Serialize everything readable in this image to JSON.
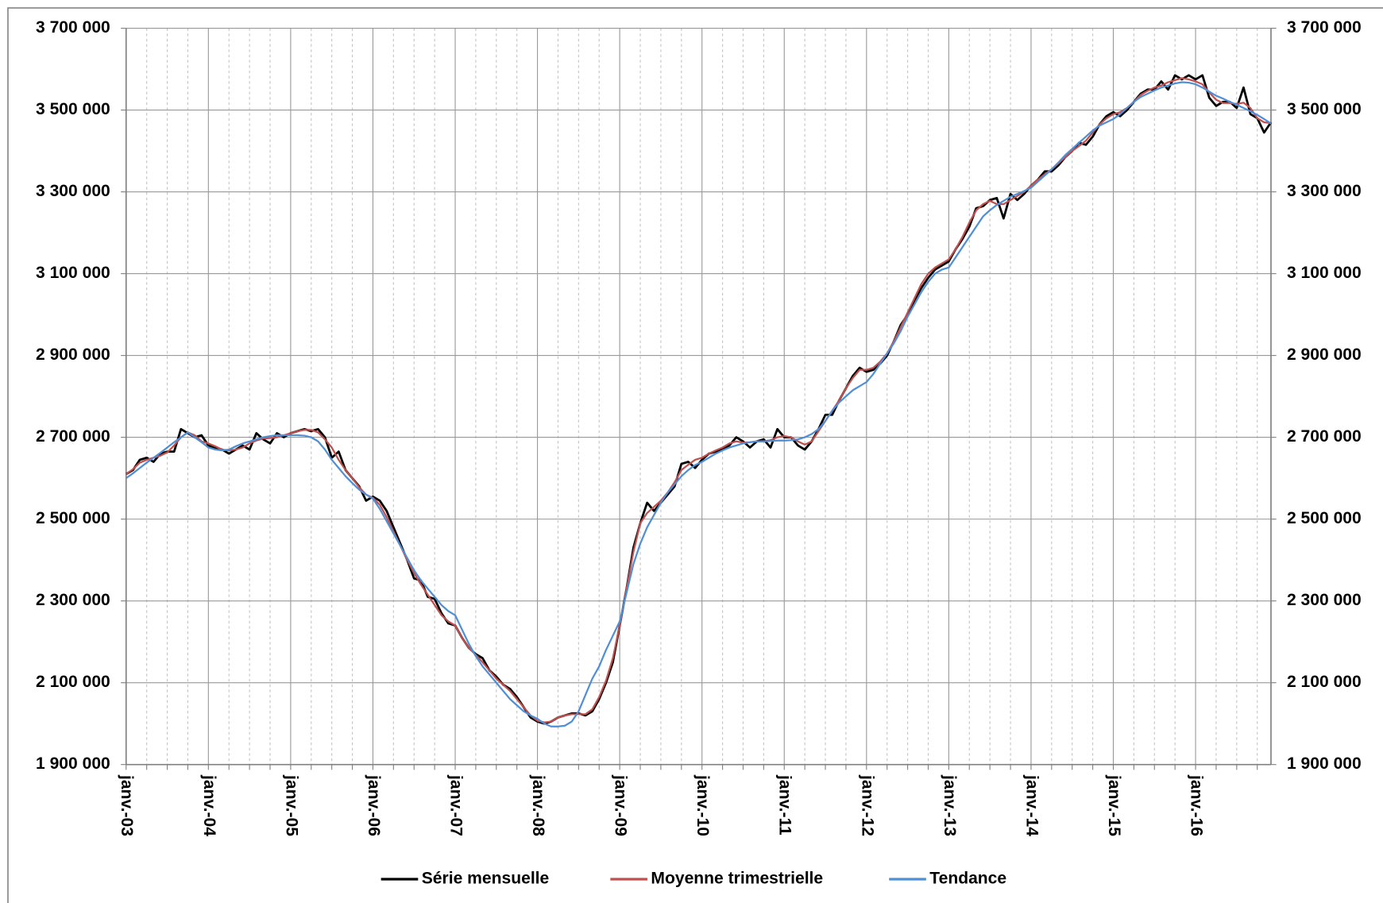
{
  "chart_data": {
    "type": "line",
    "categories": [
      "janv.-03",
      null,
      null,
      null,
      null,
      null,
      null,
      null,
      null,
      null,
      null,
      null,
      "janv.-04",
      null,
      null,
      null,
      null,
      null,
      null,
      null,
      null,
      null,
      null,
      null,
      "janv.-05",
      null,
      null,
      null,
      null,
      null,
      null,
      null,
      null,
      null,
      null,
      null,
      "janv.-06",
      null,
      null,
      null,
      null,
      null,
      null,
      null,
      null,
      null,
      null,
      null,
      "janv.-07",
      null,
      null,
      null,
      null,
      null,
      null,
      null,
      null,
      null,
      null,
      null,
      "janv.-08",
      null,
      null,
      null,
      null,
      null,
      null,
      null,
      null,
      null,
      null,
      null,
      "janv.-09",
      null,
      null,
      null,
      null,
      null,
      null,
      null,
      null,
      null,
      null,
      null,
      "janv.-10",
      null,
      null,
      null,
      null,
      null,
      null,
      null,
      null,
      null,
      null,
      null,
      "janv.-11",
      null,
      null,
      null,
      null,
      null,
      null,
      null,
      null,
      null,
      null,
      null,
      "janv.-12",
      null,
      null,
      null,
      null,
      null,
      null,
      null,
      null,
      null,
      null,
      null,
      "janv.-13",
      null,
      null,
      null,
      null,
      null,
      null,
      null,
      null,
      null,
      null,
      null,
      "janv.-14",
      null,
      null,
      null,
      null,
      null,
      null,
      null,
      null,
      null,
      null,
      null,
      "janv.-15",
      null,
      null,
      null,
      null,
      null,
      null,
      null,
      null,
      null,
      null,
      null,
      "janv.-16",
      null,
      null,
      null,
      null,
      null,
      null,
      null,
      null,
      null,
      null,
      null
    ],
    "series": [
      {
        "name": "Série mensuelle",
        "color": "#000000",
        "values": [
          2610000,
          2620000,
          2645000,
          2650000,
          2640000,
          2660000,
          2665000,
          2665000,
          2720000,
          2710000,
          2700000,
          2705000,
          2680000,
          2675000,
          2670000,
          2660000,
          2670000,
          2680000,
          2670000,
          2710000,
          2695000,
          2685000,
          2710000,
          2700000,
          2710000,
          2715000,
          2720000,
          2715000,
          2720000,
          2700000,
          2650000,
          2665000,
          2620000,
          2600000,
          2580000,
          2545000,
          2555000,
          2545000,
          2520000,
          2480000,
          2440000,
          2400000,
          2355000,
          2350000,
          2310000,
          2305000,
          2270000,
          2245000,
          2240000,
          2210000,
          2185000,
          2170000,
          2160000,
          2130000,
          2115000,
          2095000,
          2085000,
          2065000,
          2040000,
          2015000,
          2005000,
          2000000,
          2005000,
          2015000,
          2020000,
          2025000,
          2025000,
          2020000,
          2030000,
          2060000,
          2100000,
          2150000,
          2240000,
          2330000,
          2430000,
          2490000,
          2540000,
          2520000,
          2540000,
          2560000,
          2580000,
          2635000,
          2640000,
          2625000,
          2645000,
          2660000,
          2665000,
          2670000,
          2680000,
          2700000,
          2690000,
          2675000,
          2690000,
          2695000,
          2675000,
          2720000,
          2700000,
          2700000,
          2680000,
          2670000,
          2690000,
          2720000,
          2755000,
          2755000,
          2790000,
          2820000,
          2850000,
          2870000,
          2860000,
          2865000,
          2880000,
          2900000,
          2935000,
          2975000,
          3000000,
          3035000,
          3065000,
          3090000,
          3110000,
          3120000,
          3130000,
          3160000,
          3185000,
          3215000,
          3260000,
          3265000,
          3280000,
          3285000,
          3235000,
          3295000,
          3280000,
          3295000,
          3315000,
          3330000,
          3350000,
          3350000,
          3365000,
          3385000,
          3400000,
          3420000,
          3415000,
          3435000,
          3465000,
          3485000,
          3495000,
          3485000,
          3500000,
          3520000,
          3540000,
          3550000,
          3550000,
          3570000,
          3550000,
          3585000,
          3575000,
          3585000,
          3575000,
          3585000,
          3530000,
          3510000,
          3520000,
          3520000,
          3505000,
          3555000,
          3490000,
          3480000,
          3445000,
          3470000
        ]
      },
      {
        "name": "Moyenne trimestrielle",
        "color": "#c0504d",
        "values": [
          2610000,
          2622000,
          2638000,
          2645000,
          2650000,
          2655000,
          2663000,
          2680000,
          2700000,
          2712000,
          2705000,
          2690000,
          2685000,
          2678000,
          2670000,
          2668000,
          2670000,
          2675000,
          2685000,
          2692000,
          2697000,
          2698000,
          2700000,
          2705000,
          2710000,
          2715000,
          2718000,
          2718000,
          2712000,
          2695000,
          2675000,
          2645000,
          2620000,
          2600000,
          2578000,
          2560000,
          2552000,
          2535000,
          2505000,
          2470000,
          2435000,
          2400000,
          2368000,
          2340000,
          2315000,
          2290000,
          2265000,
          2250000,
          2240000,
          2210000,
          2185000,
          2168000,
          2150000,
          2130000,
          2110000,
          2095000,
          2080000,
          2060000,
          2040000,
          2020000,
          2007000,
          2003000,
          2005000,
          2015000,
          2020000,
          2023000,
          2023000,
          2023000,
          2035000,
          2065000,
          2105000,
          2160000,
          2240000,
          2330000,
          2420000,
          2490000,
          2515000,
          2530000,
          2545000,
          2565000,
          2590000,
          2620000,
          2633000,
          2645000,
          2650000,
          2660000,
          2668000,
          2675000,
          2685000,
          2690000,
          2687000,
          2688000,
          2690000,
          2690000,
          2693000,
          2700000,
          2703000,
          2700000,
          2690000,
          2682000,
          2690000,
          2715000,
          2740000,
          2765000,
          2790000,
          2820000,
          2845000,
          2865000,
          2865000,
          2870000,
          2885000,
          2905000,
          2935000,
          2970000,
          3005000,
          3040000,
          3075000,
          3100000,
          3115000,
          3125000,
          3135000,
          3160000,
          3190000,
          3225000,
          3255000,
          3270000,
          3278000,
          3270000,
          3270000,
          3280000,
          3290000,
          3300000,
          3315000,
          3330000,
          3343000,
          3355000,
          3370000,
          3385000,
          3400000,
          3412000,
          3425000,
          3445000,
          3465000,
          3480000,
          3490000,
          3495000,
          3505000,
          3520000,
          3537000,
          3547000,
          3555000,
          3560000,
          3568000,
          3573000,
          3578000,
          3575000,
          3570000,
          3563000,
          3543000,
          3525000,
          3517000,
          3517000,
          3515000,
          3518000,
          3505000,
          3480000,
          3470000,
          3468000
        ]
      },
      {
        "name": "Tendance",
        "color": "#4f8fd6",
        "values": [
          2600000,
          2612000,
          2625000,
          2638000,
          2650000,
          2662000,
          2675000,
          2688000,
          2700000,
          2712000,
          2700000,
          2688000,
          2675000,
          2670000,
          2668000,
          2670000,
          2678000,
          2685000,
          2690000,
          2695000,
          2700000,
          2703000,
          2705000,
          2705000,
          2705000,
          2705000,
          2704000,
          2700000,
          2690000,
          2670000,
          2645000,
          2625000,
          2605000,
          2588000,
          2572000,
          2560000,
          2550000,
          2525000,
          2495000,
          2465000,
          2435000,
          2405000,
          2375000,
          2350000,
          2330000,
          2310000,
          2290000,
          2275000,
          2265000,
          2230000,
          2195000,
          2165000,
          2140000,
          2120000,
          2100000,
          2080000,
          2060000,
          2045000,
          2030000,
          2020000,
          2012000,
          2000000,
          1993000,
          1993000,
          1995000,
          2005000,
          2030000,
          2070000,
          2110000,
          2140000,
          2180000,
          2215000,
          2250000,
          2320000,
          2390000,
          2440000,
          2480000,
          2510000,
          2540000,
          2565000,
          2585000,
          2605000,
          2620000,
          2632000,
          2640000,
          2650000,
          2660000,
          2668000,
          2675000,
          2680000,
          2685000,
          2688000,
          2690000,
          2690000,
          2691000,
          2692000,
          2692000,
          2693000,
          2695000,
          2700000,
          2708000,
          2720000,
          2740000,
          2765000,
          2785000,
          2800000,
          2815000,
          2825000,
          2835000,
          2855000,
          2880000,
          2905000,
          2930000,
          2960000,
          2995000,
          3025000,
          3055000,
          3080000,
          3100000,
          3110000,
          3115000,
          3140000,
          3165000,
          3190000,
          3215000,
          3240000,
          3255000,
          3268000,
          3278000,
          3288000,
          3295000,
          3302000,
          3310000,
          3325000,
          3340000,
          3355000,
          3372000,
          3390000,
          3405000,
          3420000,
          3435000,
          3450000,
          3462000,
          3470000,
          3478000,
          3490000,
          3505000,
          3520000,
          3532000,
          3540000,
          3548000,
          3555000,
          3560000,
          3565000,
          3568000,
          3567000,
          3563000,
          3555000,
          3545000,
          3535000,
          3528000,
          3520000,
          3513000,
          3505000,
          3497000,
          3488000,
          3478000,
          3467000
        ]
      }
    ],
    "ylim": [
      1900000,
      3700000
    ],
    "yticks": [
      {
        "value": 1900000,
        "label": "1 900 000"
      },
      {
        "value": 2100000,
        "label": "2 100 000"
      },
      {
        "value": 2300000,
        "label": "2 300 000"
      },
      {
        "value": 2500000,
        "label": "2 500 000"
      },
      {
        "value": 2700000,
        "label": "2 700 000"
      },
      {
        "value": 2900000,
        "label": "2 900 000"
      },
      {
        "value": 3100000,
        "label": "3 100 000"
      },
      {
        "value": 3300000,
        "label": "3 300 000"
      },
      {
        "value": 3500000,
        "label": "3 500 000"
      },
      {
        "value": 3700000,
        "label": "3 700 000"
      }
    ],
    "y2lim": [
      1900000,
      3700000
    ],
    "y2ticks": [
      {
        "value": 1900000,
        "label": "1 900 000"
      },
      {
        "value": 2100000,
        "label": "2 100 000"
      },
      {
        "value": 2300000,
        "label": "2 300 000"
      },
      {
        "value": 2500000,
        "label": "2 500 000"
      },
      {
        "value": 2700000,
        "label": "2 700 000"
      },
      {
        "value": 2900000,
        "label": "2 900 000"
      },
      {
        "value": 3100000,
        "label": "3 100 000"
      },
      {
        "value": 3300000,
        "label": "3 300 000"
      },
      {
        "value": 3500000,
        "label": "3 500 000"
      },
      {
        "value": 3700000,
        "label": "3 700 000"
      }
    ],
    "grid": true,
    "legend": "bottom"
  }
}
